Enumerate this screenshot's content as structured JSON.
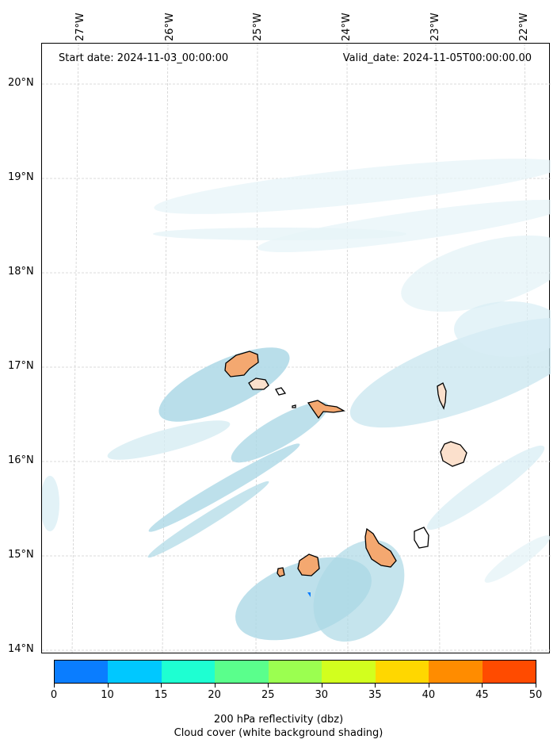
{
  "annotations": {
    "start_date": "Start date: 2024-11-03_00:00:00",
    "valid_date": "Valid_date: 2024-11-05T00:00:00.00"
  },
  "axes": {
    "lon_labels": [
      "27°W",
      "26°W",
      "25°W",
      "24°W",
      "23°W",
      "22°W"
    ],
    "lat_labels": [
      "20°N",
      "19°N",
      "18°N",
      "17°N",
      "16°N",
      "15°N",
      "14°N"
    ]
  },
  "colorbar": {
    "colors": [
      "#0a7dff",
      "#00c8ff",
      "#1effd2",
      "#5aff8c",
      "#9bff50",
      "#d2ff1e",
      "#ffd700",
      "#ff8c00",
      "#ff4b00"
    ],
    "tick_labels": [
      "0",
      "10",
      "15",
      "20",
      "25",
      "30",
      "35",
      "40",
      "45",
      "50"
    ],
    "label_line1": "200 hPa reflectivity (dbz)",
    "label_line2": "Cloud cover (white background shading)"
  },
  "colors": {
    "cloud": "#add8e6",
    "island_fill": "#f4a870",
    "coast": "#000000",
    "grid": "#d0d0d0"
  }
}
